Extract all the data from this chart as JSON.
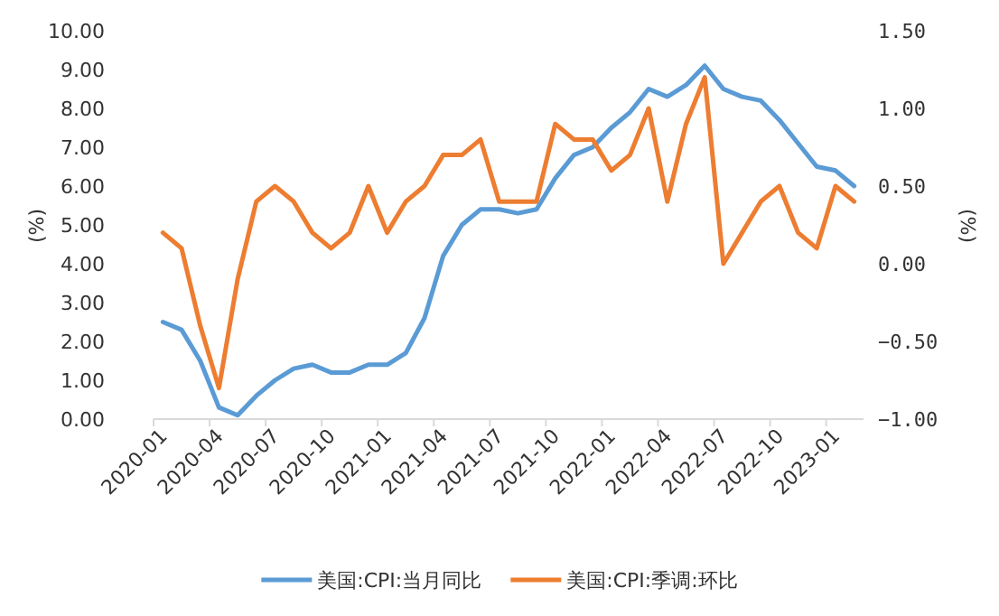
{
  "chart_data": {
    "type": "line",
    "ylabel": "(%)",
    "y2label": "(%)",
    "legend": "bottom",
    "categories": [
      "2020-01",
      null,
      null,
      "2020-04",
      null,
      null,
      "2020-07",
      null,
      null,
      "2020-10",
      null,
      null,
      "2021-01",
      null,
      null,
      "2021-04",
      null,
      null,
      "2021-07",
      null,
      null,
      "2021-10",
      null,
      null,
      "2022-01",
      null,
      null,
      "2022-04",
      null,
      null,
      "2022-07",
      null,
      null,
      "2022-10",
      null,
      null,
      "2023-01",
      null
    ],
    "series": [
      {
        "name": "美国:CPI:当月同比",
        "color": "#5b9bd5",
        "values": [
          2.5,
          2.3,
          1.5,
          0.3,
          0.1,
          0.6,
          1.0,
          1.3,
          1.4,
          1.2,
          1.2,
          1.4,
          1.4,
          1.7,
          2.6,
          4.2,
          5.0,
          5.4,
          5.4,
          5.3,
          5.4,
          6.2,
          6.8,
          7.0,
          7.5,
          7.9,
          8.5,
          8.3,
          8.6,
          9.1,
          8.5,
          8.3,
          8.2,
          7.7,
          7.1,
          6.5,
          6.4,
          6.0
        ]
      },
      {
        "name": "美国:CPI:季调:环比",
        "color": "#ed7d31",
        "axis": "y2",
        "values": [
          0.2,
          0.1,
          -0.4,
          -0.8,
          -0.1,
          0.4,
          0.5,
          0.4,
          0.2,
          0.1,
          0.2,
          0.5,
          0.2,
          0.4,
          0.5,
          0.7,
          0.7,
          0.8,
          0.4,
          0.4,
          0.4,
          0.9,
          0.8,
          0.8,
          0.6,
          0.7,
          1.0,
          0.4,
          0.9,
          1.2,
          0.0,
          0.2,
          0.4,
          0.5,
          0.2,
          0.1,
          0.5,
          0.4
        ]
      }
    ],
    "ylim": [
      0,
      10
    ],
    "yticks": [
      {
        "value": 0,
        "label": "0.00"
      },
      {
        "value": 1,
        "label": "1.00"
      },
      {
        "value": 2,
        "label": "2.00"
      },
      {
        "value": 3,
        "label": "3.00"
      },
      {
        "value": 4,
        "label": "4.00"
      },
      {
        "value": 5,
        "label": "5.00"
      },
      {
        "value": 6,
        "label": "6.00"
      },
      {
        "value": 7,
        "label": "7.00"
      },
      {
        "value": 8,
        "label": "8.00"
      },
      {
        "value": 9,
        "label": "9.00"
      },
      {
        "value": 10,
        "label": "10.00"
      }
    ],
    "y2lim": [
      -1,
      1.5
    ],
    "y2ticks": [
      {
        "value": -1,
        "label": "−1.00"
      },
      {
        "value": -0.5,
        "label": "−0.50"
      },
      {
        "value": 0,
        "label": "0.00"
      },
      {
        "value": 0.5,
        "label": "0.50"
      },
      {
        "value": 1,
        "label": "1.00"
      },
      {
        "value": 1.5,
        "label": "1.50"
      }
    ]
  }
}
